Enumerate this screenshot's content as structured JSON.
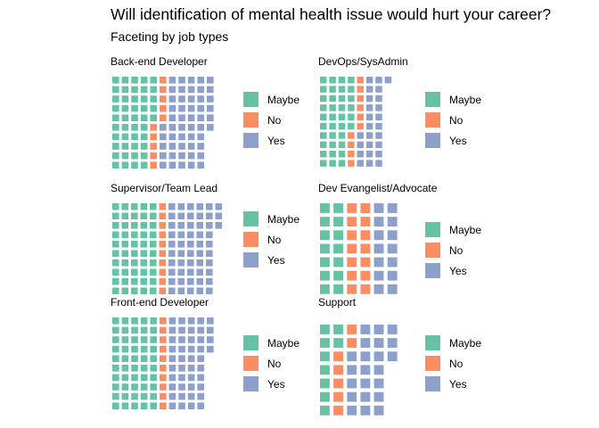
{
  "chart_data": {
    "type": "waffle",
    "title": "Will identification of mental health issue would hurt your career?",
    "subtitle": "Faceting by job types",
    "categories": [
      "Maybe",
      "No",
      "Yes"
    ],
    "colors": {
      "Maybe": "#66c2a5",
      "No": "#fc8d62",
      "Yes": "#8da0cb"
    },
    "legend_position": "right of each panel",
    "facets": [
      {
        "name": "Back-end Developer",
        "rows": 10,
        "values": {
          "Maybe": 45,
          "No": 10,
          "Yes": 51
        }
      },
      {
        "name": "DevOps/SysAdmin",
        "rows": 10,
        "values": {
          "Maybe": 36,
          "No": 10,
          "Yes": 25
        }
      },
      {
        "name": "Supervisor/Team Lead",
        "rows": 10,
        "values": {
          "Maybe": 50,
          "No": 10,
          "Yes": 53
        }
      },
      {
        "name": "Dev Evangelist/Advocate",
        "rows": 7,
        "values": {
          "Maybe": 14,
          "No": 14,
          "Yes": 14
        }
      },
      {
        "name": "Front-end Developer",
        "rows": 10,
        "values": {
          "Maybe": 50,
          "No": 10,
          "Yes": 44
        }
      },
      {
        "name": "Support",
        "rows": 7,
        "values": {
          "Maybe": 9,
          "No": 7,
          "Yes": 22
        }
      }
    ]
  }
}
